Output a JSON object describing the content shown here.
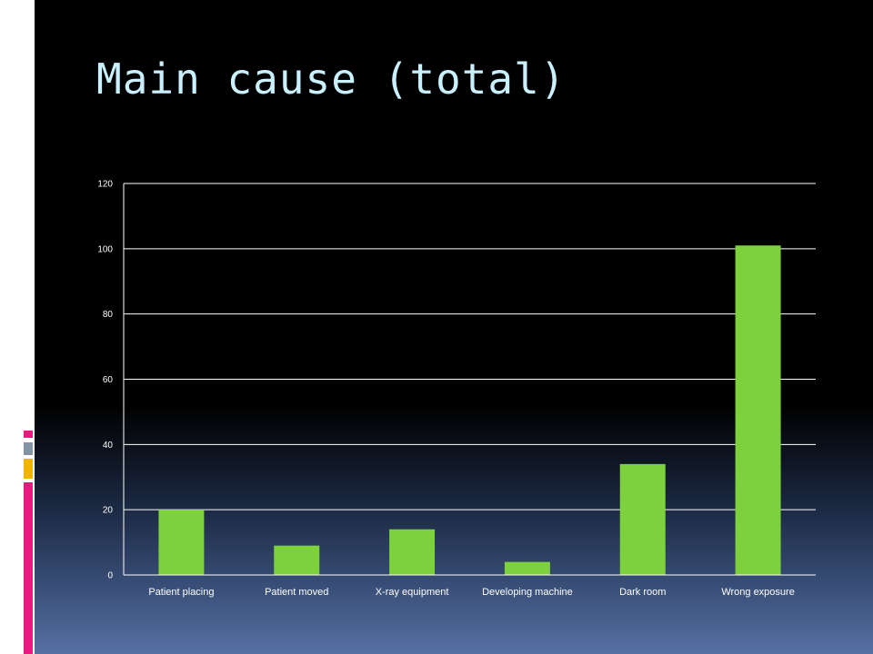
{
  "slide": {
    "title": "Main cause (total)"
  },
  "colors": {
    "background": "#000000",
    "title": "#c9f0ff",
    "bar": "#7dd13d",
    "gridline": "#ffffff",
    "accent_pink": "#e8197f",
    "accent_gray": "#8494a4",
    "accent_yellow": "#f2b300"
  },
  "chart_data": {
    "type": "bar",
    "title": "",
    "xlabel": "",
    "ylabel": "",
    "categories": [
      "Patient placing",
      "Patient moved",
      "X-ray equipment",
      "Developing machine",
      "Dark room",
      "Wrong exposure"
    ],
    "values": [
      20,
      9,
      14,
      4,
      34,
      101
    ],
    "ylim": [
      0,
      120
    ],
    "yticks": [
      0,
      20,
      40,
      60,
      80,
      100,
      120
    ],
    "grid": true,
    "legend": "none",
    "bar_color": "#7dd13d"
  }
}
